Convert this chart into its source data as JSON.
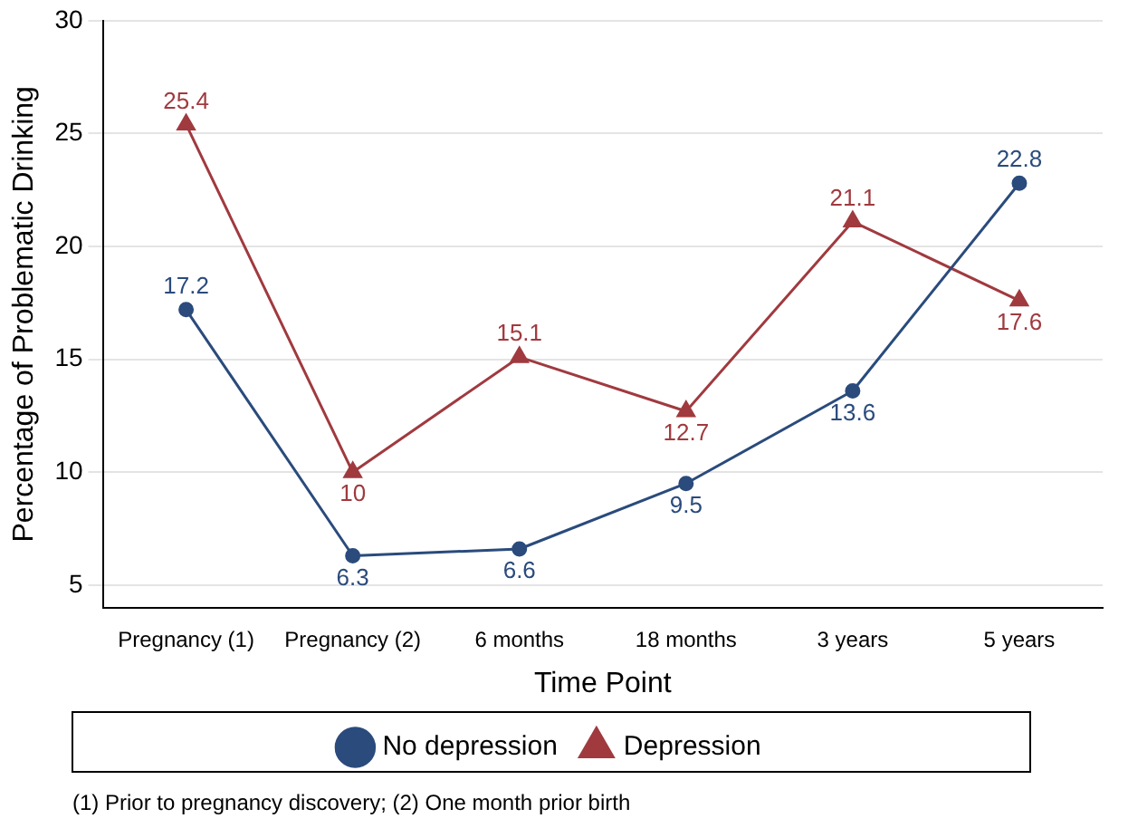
{
  "chart_data": {
    "type": "line",
    "xlabel": "Time Point",
    "ylabel": "Percentage of Problematic Drinking",
    "categories": [
      "Pregnancy (1)",
      "Pregnancy (2)",
      "6 months",
      "18 months",
      "3 years",
      "5 years"
    ],
    "series": [
      {
        "name": "No depression",
        "color": "#2a4b7c",
        "marker": "circle",
        "values": [
          17.2,
          6.3,
          6.6,
          9.5,
          13.6,
          22.8
        ]
      },
      {
        "name": "Depression",
        "color": "#a03a3f",
        "marker": "triangle",
        "values": [
          25.4,
          10,
          15.1,
          12.7,
          21.1,
          17.6
        ]
      }
    ],
    "ylim": [
      4,
      30
    ],
    "yticks": [
      5,
      10,
      15,
      20,
      25,
      30
    ],
    "grid": "y",
    "legend": "bottom",
    "data_labels": true,
    "line_style": "solid",
    "annotations": [
      "(1) Prior to pregnancy discovery; (2) One month prior birth"
    ]
  }
}
